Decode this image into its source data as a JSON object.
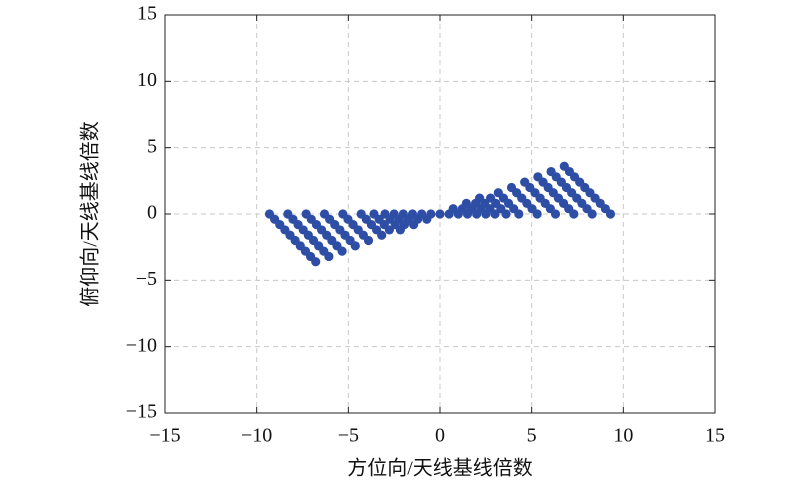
{
  "chart_data": {
    "type": "scatter",
    "xlabel": "方位向/天线基线倍数",
    "ylabel": "俯仰向/天线基线倍数",
    "color": "#2e4ea6",
    "grid": true,
    "xlim": [
      -15,
      15
    ],
    "ylim": [
      -15,
      15
    ],
    "xticks": [
      {
        "value": -15,
        "label": "−15"
      },
      {
        "value": -10,
        "label": "−10"
      },
      {
        "value": -5,
        "label": "−5"
      },
      0,
      5,
      10,
      15
    ],
    "yticks": [
      {
        "value": -15,
        "label": "−15"
      },
      {
        "value": -10,
        "label": "−10"
      },
      {
        "value": -5,
        "label": "−5"
      },
      0,
      5,
      10,
      15
    ],
    "x": [
      -9.3,
      -9.02,
      -8.74,
      -8.46,
      -8.18,
      -7.9,
      -7.62,
      -7.34,
      -7.06,
      -6.78,
      -8.3,
      -8.02,
      -7.74,
      -7.46,
      -7.18,
      -6.9,
      -6.62,
      -6.34,
      -6.06,
      -7.3,
      -7.02,
      -6.74,
      -6.46,
      -6.18,
      -5.9,
      -5.62,
      -5.34,
      -6.3,
      -6.02,
      -5.74,
      -5.46,
      -5.18,
      -4.9,
      -4.62,
      -5.3,
      -5.02,
      -4.74,
      -4.46,
      -4.18,
      -3.9,
      -4.3,
      -4.02,
      -3.74,
      -3.46,
      -3.18,
      -3.6,
      -3.32,
      -3.04,
      -2.76,
      -3.0,
      -2.72,
      -2.44,
      -2.16,
      -2.5,
      -2.22,
      -1.94,
      -2.0,
      -1.72,
      -1.44,
      -1.5,
      -1.22,
      -1.0,
      -0.72,
      -0.5,
      0,
      9.3,
      9.02,
      8.74,
      8.46,
      8.18,
      7.9,
      7.62,
      7.34,
      7.06,
      6.78,
      8.3,
      8.02,
      7.74,
      7.46,
      7.18,
      6.9,
      6.62,
      6.34,
      6.06,
      7.3,
      7.02,
      6.74,
      6.46,
      6.18,
      5.9,
      5.62,
      5.34,
      6.3,
      6.02,
      5.74,
      5.46,
      5.18,
      4.9,
      4.62,
      5.3,
      5.02,
      4.74,
      4.46,
      4.18,
      3.9,
      4.3,
      4.02,
      3.74,
      3.46,
      3.18,
      3.6,
      3.32,
      3.04,
      2.76,
      3.0,
      2.72,
      2.44,
      2.16,
      2.5,
      2.22,
      1.94,
      2.0,
      1.72,
      1.44,
      1.5,
      1.22,
      1.0,
      0.72,
      0.5
    ],
    "y": [
      0,
      -0.4,
      -0.8,
      -1.2,
      -1.6,
      -2,
      -2.4,
      -2.8,
      -3.2,
      -3.6,
      0,
      -0.4,
      -0.8,
      -1.2,
      -1.6,
      -2,
      -2.4,
      -2.8,
      -3.2,
      0,
      -0.4,
      -0.8,
      -1.2,
      -1.6,
      -2,
      -2.4,
      -2.8,
      0,
      -0.4,
      -0.8,
      -1.2,
      -1.6,
      -2,
      -2.4,
      0,
      -0.4,
      -0.8,
      -1.2,
      -1.6,
      -2,
      0,
      -0.4,
      -0.8,
      -1.2,
      -1.6,
      0,
      -0.4,
      -0.8,
      -1.2,
      0,
      -0.4,
      -0.8,
      -1.2,
      0,
      -0.4,
      -0.8,
      0,
      -0.4,
      -0.8,
      0,
      -0.4,
      0,
      -0.4,
      0,
      0,
      0,
      0.4,
      0.8,
      1.2,
      1.6,
      2,
      2.4,
      2.8,
      3.2,
      3.6,
      0,
      0.4,
      0.8,
      1.2,
      1.6,
      2,
      2.4,
      2.8,
      3.2,
      0,
      0.4,
      0.8,
      1.2,
      1.6,
      2,
      2.4,
      2.8,
      0,
      0.4,
      0.8,
      1.2,
      1.6,
      2,
      2.4,
      0,
      0.4,
      0.8,
      1.2,
      1.6,
      2,
      0,
      0.4,
      0.8,
      1.2,
      1.6,
      0,
      0.4,
      0.8,
      1.2,
      0,
      0.4,
      0.8,
      1.2,
      0,
      0.4,
      0.8,
      0,
      0.4,
      0.8,
      0,
      0.4,
      0,
      0.4,
      0
    ]
  }
}
